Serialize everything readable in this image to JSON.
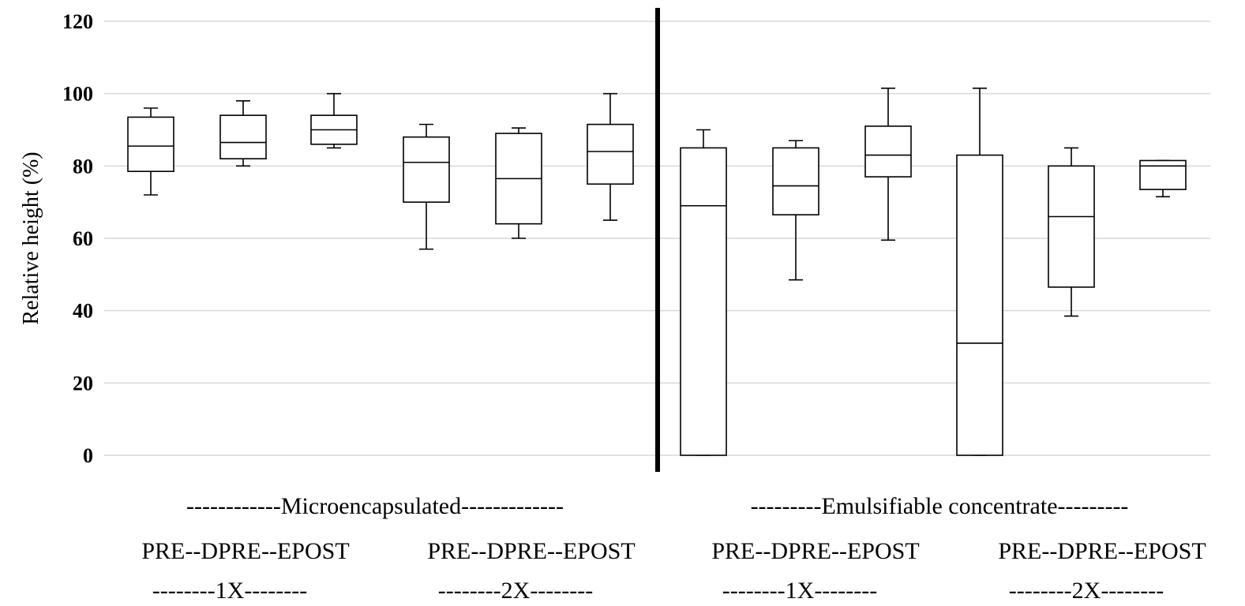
{
  "chart_data": {
    "type": "box",
    "ylabel": "Relative height (%)",
    "ylim": [
      0,
      120
    ],
    "yticks": [
      0,
      20,
      40,
      60,
      80,
      100,
      120
    ],
    "grid": true,
    "divider_after_group": 0,
    "groups": [
      {
        "label": "------------Microencapsulated-------------",
        "subgroups": [
          {
            "timing_label": "PRE--DPRE--EPOST",
            "rate_label": "--------1X--------"
          },
          {
            "timing_label": "PRE--DPRE--EPOST",
            "rate_label": "--------2X--------"
          }
        ]
      },
      {
        "label": "---------Emulsifiable concentrate---------",
        "subgroups": [
          {
            "timing_label": "PRE--DPRE--EPOST",
            "rate_label": "--------1X--------"
          },
          {
            "timing_label": "PRE--DPRE--EPOST",
            "rate_label": "--------2X--------"
          }
        ]
      }
    ],
    "boxes": [
      {
        "group": "Microencapsulated",
        "rate": "1X",
        "timing": "PRE",
        "min": 72,
        "q1": 78.5,
        "median": 85.5,
        "q3": 93.5,
        "max": 96
      },
      {
        "group": "Microencapsulated",
        "rate": "1X",
        "timing": "DPRE",
        "min": 80,
        "q1": 82,
        "median": 86.5,
        "q3": 94,
        "max": 98
      },
      {
        "group": "Microencapsulated",
        "rate": "1X",
        "timing": "EPOST",
        "min": 85,
        "q1": 86,
        "median": 90,
        "q3": 94,
        "max": 100
      },
      {
        "group": "Microencapsulated",
        "rate": "2X",
        "timing": "PRE",
        "min": 57,
        "q1": 70,
        "median": 81,
        "q3": 88,
        "max": 91.5
      },
      {
        "group": "Microencapsulated",
        "rate": "2X",
        "timing": "DPRE",
        "min": 60,
        "q1": 64,
        "median": 76.5,
        "q3": 89,
        "max": 90.5
      },
      {
        "group": "Microencapsulated",
        "rate": "2X",
        "timing": "EPOST",
        "min": 65,
        "q1": 75,
        "median": 84,
        "q3": 91.5,
        "max": 100
      },
      {
        "group": "Emulsifiable concentrate",
        "rate": "1X",
        "timing": "PRE",
        "min": 0,
        "q1": 0,
        "median": 69,
        "q3": 85,
        "max": 90
      },
      {
        "group": "Emulsifiable concentrate",
        "rate": "1X",
        "timing": "DPRE",
        "min": 48.5,
        "q1": 66.5,
        "median": 74.5,
        "q3": 85,
        "max": 87
      },
      {
        "group": "Emulsifiable concentrate",
        "rate": "1X",
        "timing": "EPOST",
        "min": 59.5,
        "q1": 77,
        "median": 83,
        "q3": 91,
        "max": 101.5
      },
      {
        "group": "Emulsifiable concentrate",
        "rate": "2X",
        "timing": "PRE",
        "min": 0,
        "q1": 0,
        "median": 31,
        "q3": 83,
        "max": 101.5
      },
      {
        "group": "Emulsifiable concentrate",
        "rate": "2X",
        "timing": "DPRE",
        "min": 38.5,
        "q1": 46.5,
        "median": 66,
        "q3": 80,
        "max": 85
      },
      {
        "group": "Emulsifiable concentrate",
        "rate": "2X",
        "timing": "EPOST",
        "min": 71.5,
        "q1": 73.5,
        "median": 80,
        "q3": 81.5,
        "max": 81.5
      }
    ]
  }
}
